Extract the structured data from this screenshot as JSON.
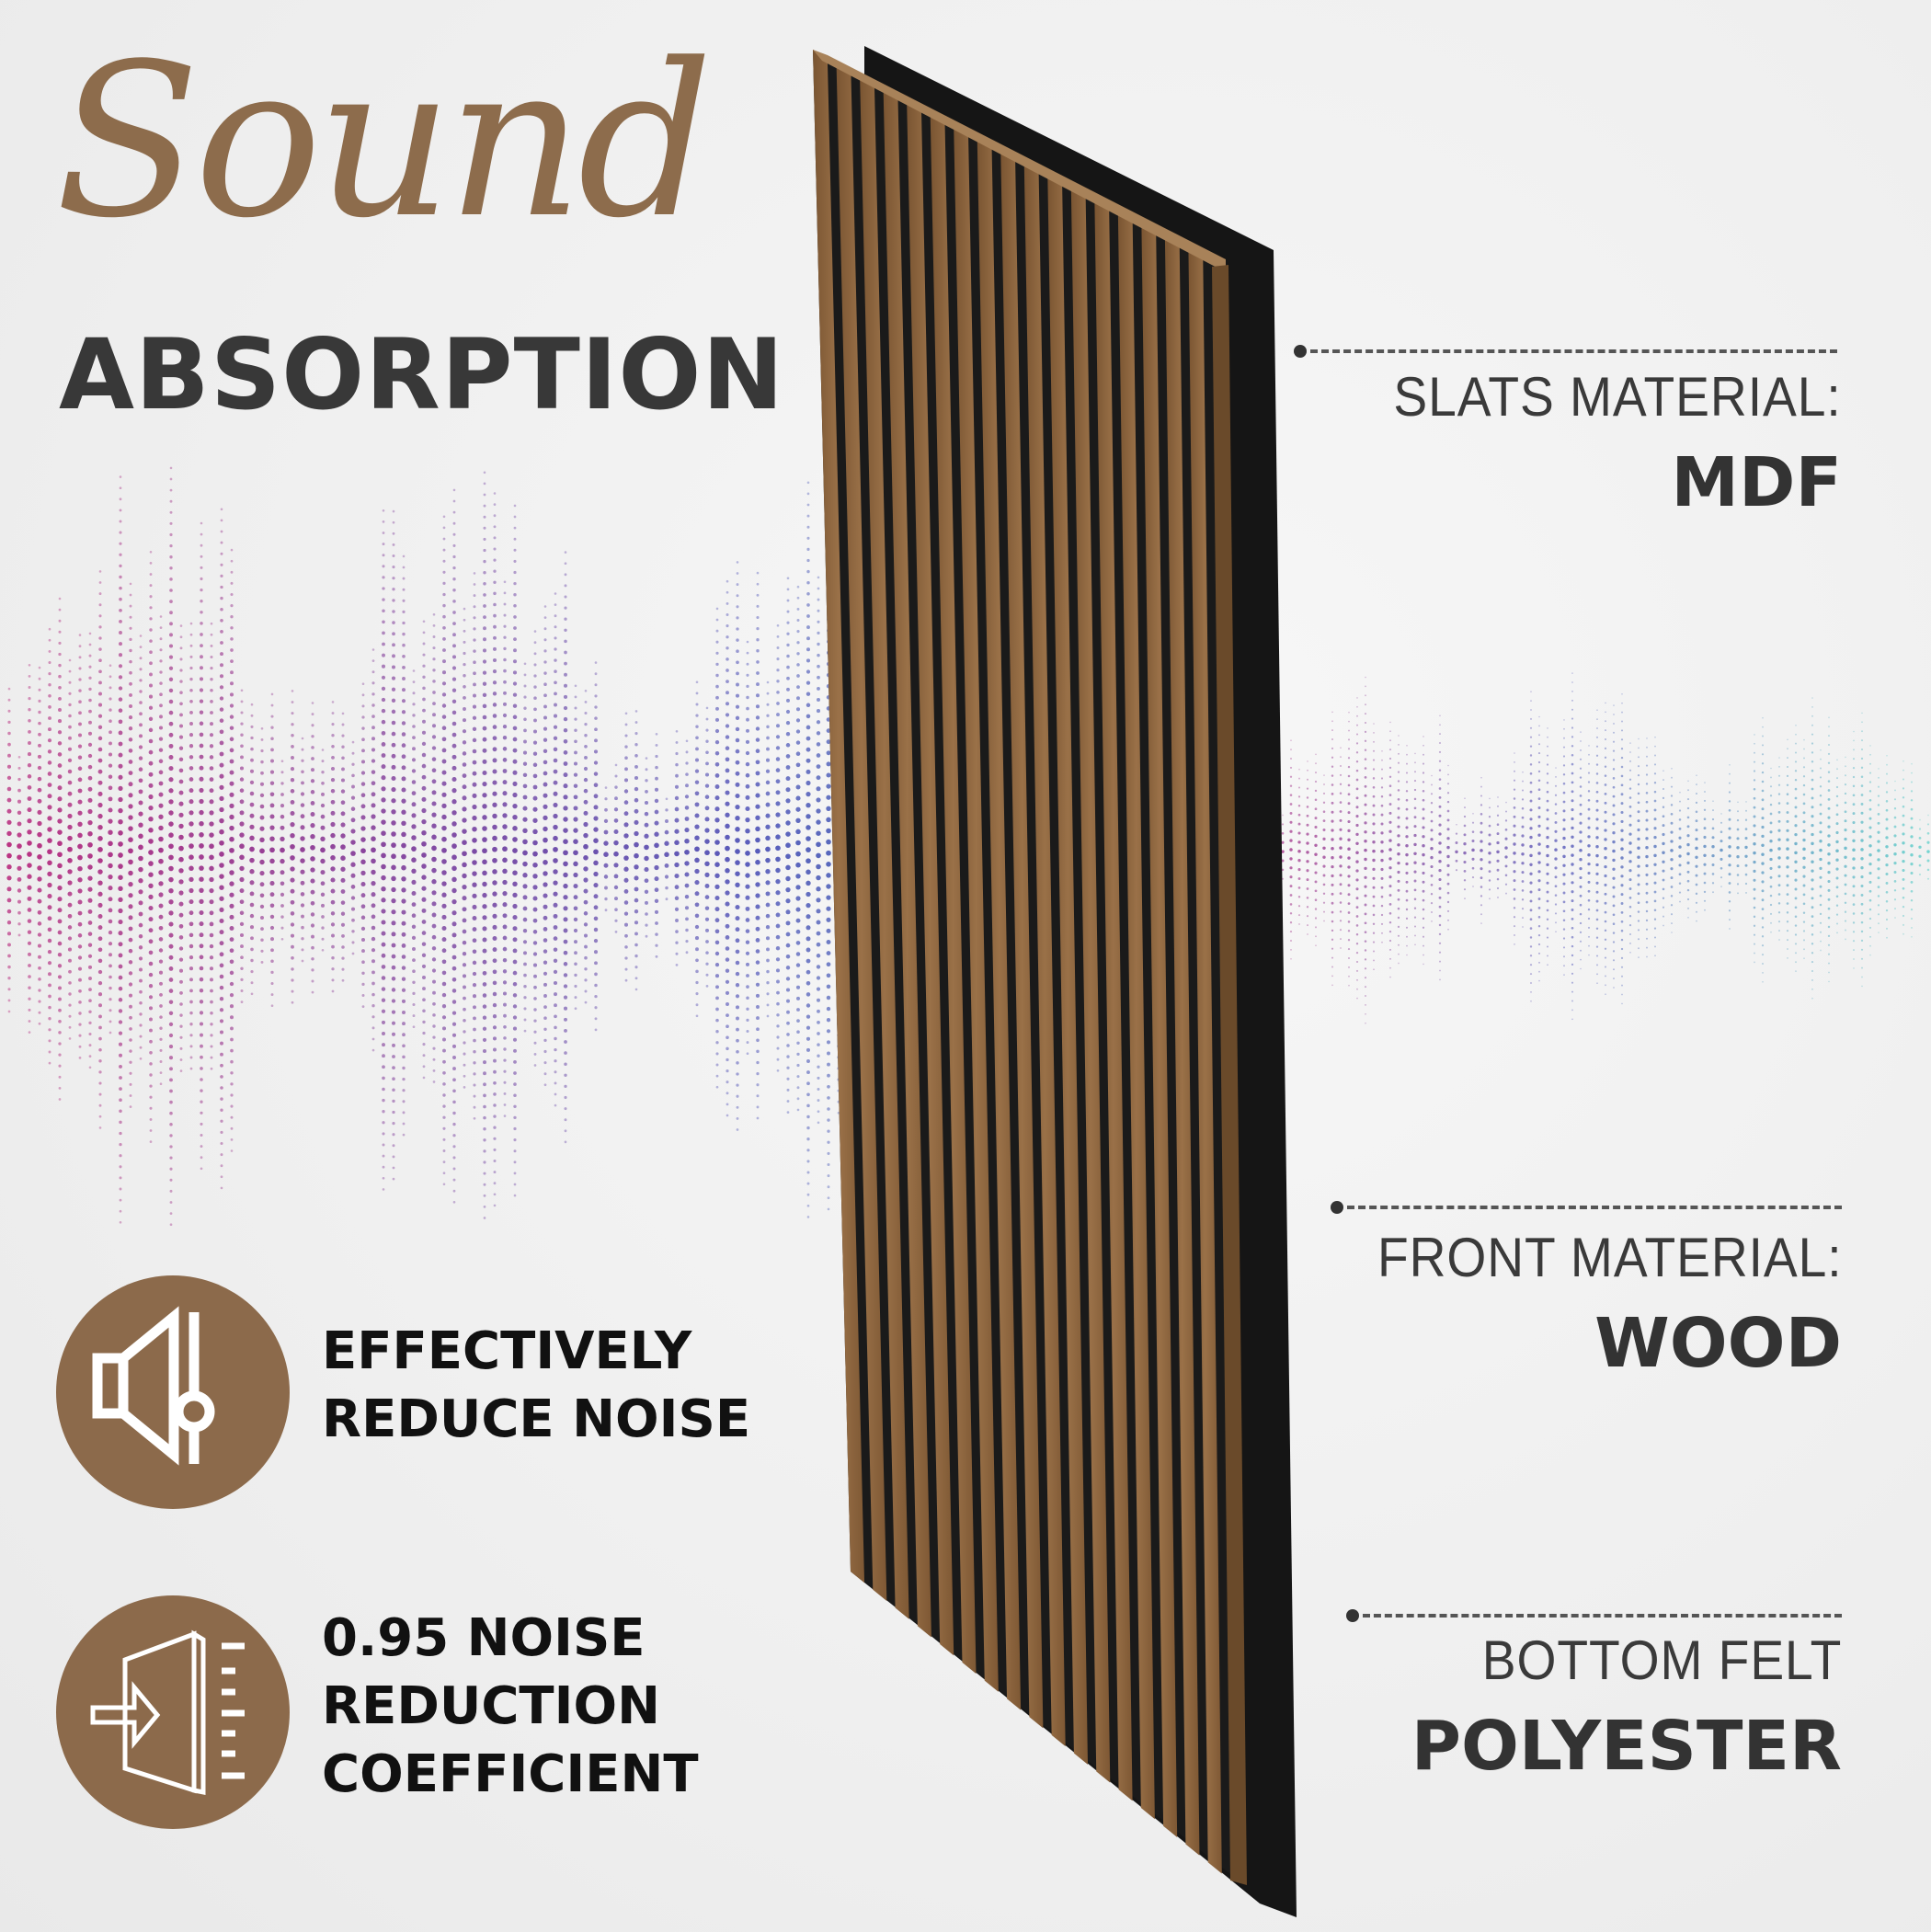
{
  "title": {
    "script": "Sound",
    "main": "ABSORPTION"
  },
  "specs": [
    {
      "label": "SLATS MATERIAL:",
      "value": "MDF"
    },
    {
      "label": "FRONT MATERIAL:",
      "value": "WOOD"
    },
    {
      "label": "BOTTOM FELT",
      "value": "POLYESTER"
    }
  ],
  "features": [
    {
      "icon": "speaker-volume-icon",
      "lines": [
        "EFFECTIVELY",
        "REDUCE NOISE"
      ]
    },
    {
      "icon": "panel-absorption-icon",
      "lines": [
        "0.95 NOISE",
        "REDUCTION",
        "COEFFICIENT"
      ]
    }
  ],
  "colors": {
    "brand_brown": "#8c6a4b",
    "wood": "#8a6238",
    "wave_start": "#b0106e",
    "wave_mid": "#3a3fb0",
    "wave_end": "#3cc8c0"
  }
}
